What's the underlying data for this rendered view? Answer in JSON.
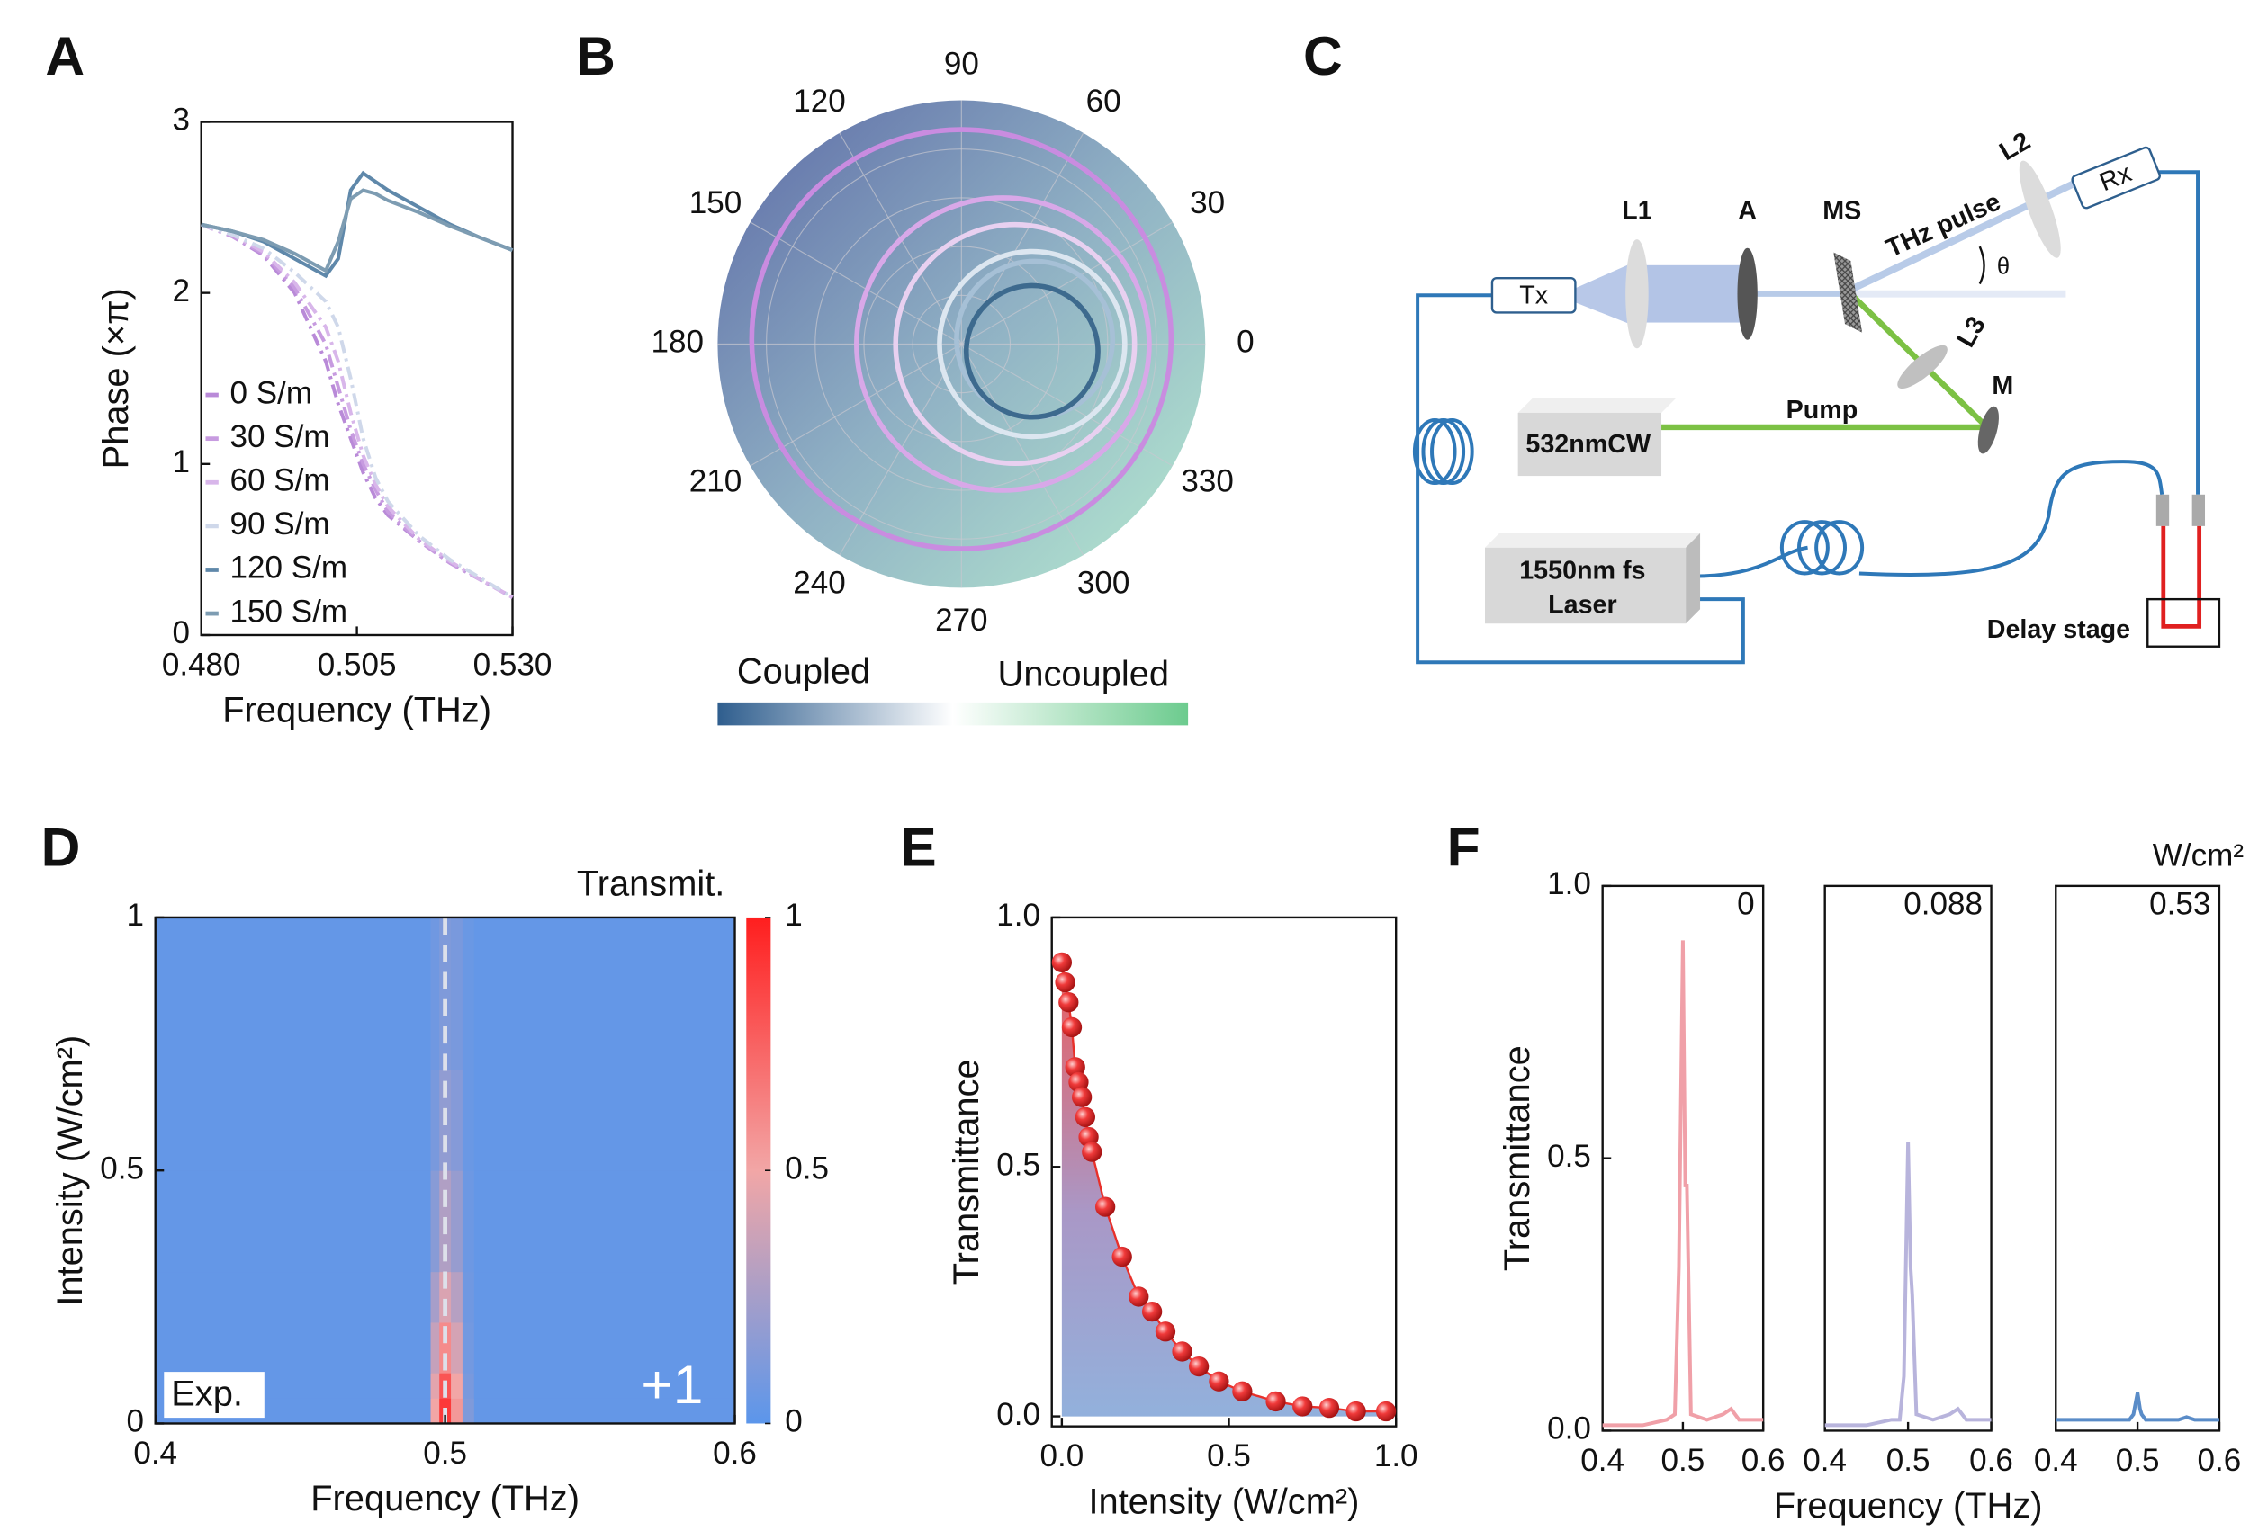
{
  "chart_data": [
    {
      "panel": "A",
      "type": "line",
      "x": [
        0.48,
        0.485,
        0.49,
        0.495,
        0.5,
        0.502,
        0.504,
        0.506,
        0.508,
        0.51,
        0.515,
        0.52,
        0.525,
        0.53
      ],
      "series": [
        {
          "name": "0 S/m",
          "color": "#b98ad8",
          "linestyle": "dashed",
          "values": [
            2.4,
            2.33,
            2.22,
            2.0,
            1.6,
            1.35,
            1.15,
            0.95,
            0.8,
            0.7,
            0.55,
            0.42,
            0.32,
            0.22
          ]
        },
        {
          "name": "30 S/m",
          "color": "#c79be0",
          "linestyle": "dashed",
          "values": [
            2.4,
            2.33,
            2.23,
            2.03,
            1.7,
            1.45,
            1.2,
            1.0,
            0.85,
            0.72,
            0.55,
            0.42,
            0.32,
            0.22
          ]
        },
        {
          "name": "60 S/m",
          "color": "#d8b6ea",
          "linestyle": "dashed",
          "values": [
            2.4,
            2.34,
            2.24,
            2.06,
            1.8,
            1.6,
            1.3,
            1.05,
            0.88,
            0.75,
            0.56,
            0.43,
            0.32,
            0.22
          ]
        },
        {
          "name": "90 S/m",
          "color": "#cfd8ea",
          "linestyle": "dashed",
          "values": [
            2.4,
            2.34,
            2.26,
            2.12,
            1.95,
            1.8,
            1.5,
            1.15,
            0.92,
            0.78,
            0.58,
            0.44,
            0.33,
            0.22
          ]
        },
        {
          "name": "120 S/m",
          "color": "#5f88aa",
          "linestyle": "solid",
          "values": [
            2.4,
            2.36,
            2.3,
            2.2,
            2.1,
            2.2,
            2.6,
            2.7,
            2.65,
            2.6,
            2.5,
            2.4,
            2.32,
            2.25
          ]
        },
        {
          "name": "150 S/m",
          "color": "#7d9cb2",
          "linestyle": "solid",
          "values": [
            2.4,
            2.36,
            2.31,
            2.23,
            2.13,
            2.3,
            2.55,
            2.6,
            2.58,
            2.54,
            2.47,
            2.39,
            2.32,
            2.25
          ]
        }
      ],
      "xlim": [
        0.48,
        0.53
      ],
      "ylim": [
        0,
        3
      ],
      "xticks": [
        {
          "value": 0.48,
          "label": "0.480"
        },
        {
          "value": 0.505,
          "label": "0.505"
        },
        {
          "value": 0.53,
          "label": "0.530"
        }
      ],
      "yticks": [
        0,
        1,
        2,
        3
      ],
      "xlabel": "Frequency (THz)",
      "ylabel": "Phase (×π)",
      "legend": "lower left"
    },
    {
      "panel": "B",
      "type": "polar",
      "rlim": [
        0,
        1
      ],
      "thetaticks": [
        0,
        30,
        60,
        90,
        120,
        150,
        180,
        210,
        240,
        270,
        300,
        330
      ],
      "series": [
        {
          "color": "#c98ce0",
          "center": [
            0,
            0.02
          ],
          "radius": 0.86
        },
        {
          "color": "#d8a8e8",
          "center": [
            0.17,
            0
          ],
          "radius": 0.6
        },
        {
          "color": "#e8d0f0",
          "center": [
            0.22,
            0
          ],
          "radius": 0.49
        },
        {
          "color": "#dce6f0",
          "center": [
            0.29,
            0
          ],
          "radius": 0.38
        },
        {
          "color": "#a6c0d6",
          "center": [
            0.3,
            0.02
          ],
          "radius": 0.32
        },
        {
          "color": "#3d6a8e",
          "center": [
            0.29,
            -0.03
          ],
          "radius": 0.27
        }
      ],
      "colorbar_labels": [
        "Coupled",
        "Uncoupled"
      ]
    },
    {
      "panel": "D",
      "type": "heatmap",
      "xbins": [
        0.4,
        0.495,
        0.498,
        0.502,
        0.506,
        0.51,
        0.6
      ],
      "ybins": [
        0,
        0.05,
        0.1,
        0.2,
        0.3,
        0.5,
        0.7,
        1.0
      ],
      "values": [
        [
          0.03,
          0.5,
          0.9,
          0.55,
          0.12,
          0.03
        ],
        [
          0.03,
          0.45,
          0.8,
          0.5,
          0.1,
          0.03
        ],
        [
          0.03,
          0.35,
          0.6,
          0.4,
          0.08,
          0.03
        ],
        [
          0.03,
          0.25,
          0.42,
          0.3,
          0.07,
          0.03
        ],
        [
          0.03,
          0.15,
          0.28,
          0.2,
          0.06,
          0.03
        ],
        [
          0.03,
          0.1,
          0.18,
          0.14,
          0.05,
          0.03
        ],
        [
          0.03,
          0.07,
          0.12,
          0.1,
          0.05,
          0.03
        ]
      ],
      "colormap": [
        "#5b96eb",
        "#f2a6a6",
        "#ff1e1e"
      ],
      "xlim": [
        0.4,
        0.6
      ],
      "ylim": [
        0,
        1
      ],
      "xticks": [
        0.4,
        0.5,
        0.6
      ],
      "yticks": [
        0,
        0.5,
        1
      ],
      "clim": [
        0,
        1
      ],
      "cticks": [
        0,
        0.5,
        1
      ],
      "colorbar_label": "Transmit.",
      "vline": 0.5,
      "annotations": [
        "Exp.",
        "+1"
      ],
      "xlabel": "Frequency (THz)",
      "ylabel": "Intensity (W/cm²)"
    },
    {
      "panel": "E",
      "type": "scatter",
      "color": "#e8302a",
      "x": [
        0.0,
        0.01,
        0.02,
        0.03,
        0.04,
        0.05,
        0.06,
        0.07,
        0.08,
        0.09,
        0.13,
        0.18,
        0.23,
        0.27,
        0.31,
        0.36,
        0.41,
        0.47,
        0.54,
        0.64,
        0.72,
        0.8,
        0.88,
        0.97
      ],
      "values": [
        0.91,
        0.87,
        0.83,
        0.78,
        0.7,
        0.67,
        0.64,
        0.6,
        0.56,
        0.53,
        0.42,
        0.32,
        0.24,
        0.21,
        0.17,
        0.13,
        0.1,
        0.07,
        0.05,
        0.03,
        0.02,
        0.017,
        0.01,
        0.01
      ],
      "xlim": [
        -0.03,
        1.0
      ],
      "ylim": [
        -0.02,
        1.0
      ],
      "xticks": [
        {
          "value": 0,
          "label": "0.0"
        },
        {
          "value": 0.5,
          "label": "0.5"
        },
        {
          "value": 1,
          "label": "1.0"
        }
      ],
      "yticks": [
        {
          "value": 0,
          "label": "0.0"
        },
        {
          "value": 0.5,
          "label": "0.5"
        },
        {
          "value": 1,
          "label": "1.0"
        }
      ],
      "xlabel": "Intensity (W/cm²)",
      "ylabel": "Transmittance"
    },
    {
      "panel": "F",
      "type": "line",
      "x": [
        0.4,
        0.45,
        0.48,
        0.49,
        0.495,
        0.5,
        0.503,
        0.505,
        0.51,
        0.53,
        0.55,
        0.56,
        0.57,
        0.6
      ],
      "series": [
        {
          "color": "#f0a0a8",
          "values": [
            0.01,
            0.01,
            0.02,
            0.03,
            0.3,
            0.9,
            0.45,
            0.45,
            0.03,
            0.02,
            0.03,
            0.04,
            0.02,
            0.02
          ]
        }
      ],
      "xlim": [
        0.4,
        0.6
      ],
      "ylim": [
        0,
        1
      ],
      "xticks": [
        0.4,
        0.5,
        0.6
      ],
      "yticks": [
        {
          "value": 0,
          "label": "0.0"
        },
        {
          "value": 0.5,
          "label": "0.5"
        },
        {
          "value": 1,
          "label": "1.0"
        }
      ],
      "annotations": [
        "0"
      ],
      "ylabel": "Transmittance"
    },
    {
      "type": "line",
      "x": [
        0.4,
        0.45,
        0.48,
        0.49,
        0.495,
        0.5,
        0.503,
        0.505,
        0.51,
        0.53,
        0.55,
        0.56,
        0.57,
        0.6
      ],
      "series": [
        {
          "color": "#b8b4dc",
          "values": [
            0.01,
            0.01,
            0.02,
            0.02,
            0.1,
            0.53,
            0.3,
            0.25,
            0.03,
            0.02,
            0.03,
            0.04,
            0.02,
            0.02
          ]
        }
      ],
      "xlim": [
        0.4,
        0.6
      ],
      "ylim": [
        0,
        1
      ],
      "xticks": [
        0.4,
        0.5,
        0.6
      ],
      "annotations": [
        "0.088"
      ],
      "xlabel": "Frequency  (THz)"
    },
    {
      "type": "line",
      "x": [
        0.4,
        0.45,
        0.48,
        0.49,
        0.495,
        0.5,
        0.503,
        0.505,
        0.51,
        0.53,
        0.55,
        0.56,
        0.57,
        0.6
      ],
      "series": [
        {
          "color": "#5a8cc8",
          "values": [
            0.02,
            0.02,
            0.02,
            0.02,
            0.03,
            0.07,
            0.04,
            0.03,
            0.02,
            0.02,
            0.02,
            0.025,
            0.02,
            0.02
          ]
        }
      ],
      "xlim": [
        0.4,
        0.6
      ],
      "ylim": [
        0,
        1
      ],
      "xticks": [
        0.4,
        0.5,
        0.6
      ],
      "annotations": [
        "0.53"
      ],
      "unit": "W/cm²"
    }
  ],
  "diagram": {
    "panel": "C",
    "tx": "Tx",
    "l1": "L1",
    "a": "A",
    "ms": "MS",
    "thz": "THz pulse",
    "theta": "θ",
    "l2": "L2",
    "rx": "Rx",
    "l3": "L3",
    "m": "M",
    "pump": "Pump",
    "cw": "532nmCW",
    "fs1": "1550nm  fs",
    "fs2": "Laser",
    "delay": "Delay stage"
  }
}
